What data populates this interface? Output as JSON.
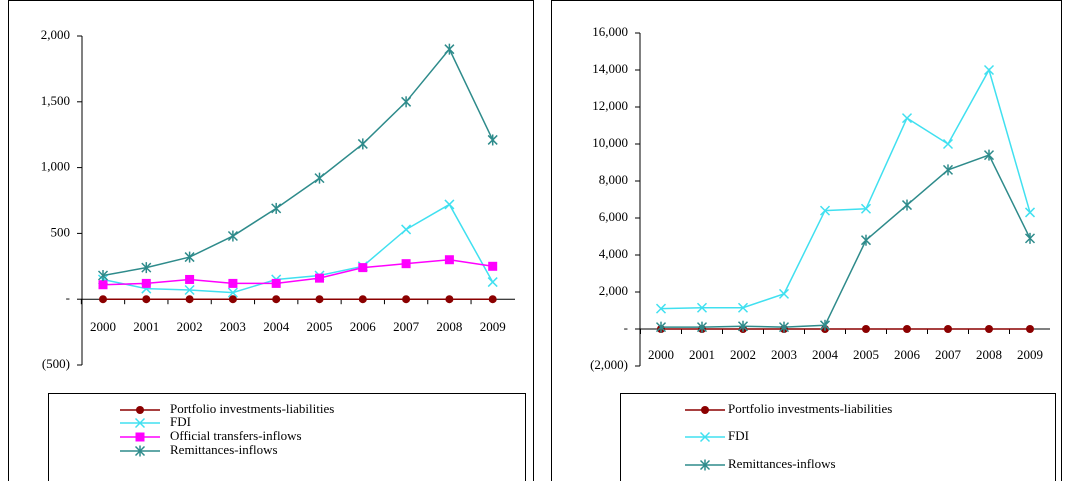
{
  "chart_data": [
    {
      "type": "line",
      "categories": [
        "2000",
        "2001",
        "2002",
        "2003",
        "2004",
        "2005",
        "2006",
        "2007",
        "2008",
        "2009"
      ],
      "ylim": [
        -500,
        2000
      ],
      "yticks": [
        {
          "value": -500,
          "label": "(500)"
        },
        {
          "value": 0,
          "label": "-"
        },
        500,
        {
          "value": 1000,
          "label": "1,000"
        },
        {
          "value": 1500,
          "label": "1,500"
        },
        {
          "value": 2000,
          "label": "2,000"
        }
      ],
      "grid": false,
      "series": [
        {
          "name": "Portfolio investments-liabilities",
          "color": "#8b0000",
          "marker": "circle",
          "values": [
            0,
            0,
            0,
            0,
            0,
            0,
            0,
            0,
            0,
            0
          ]
        },
        {
          "name": "FDI",
          "color": "#40e0f0",
          "marker": "x",
          "values": [
            150,
            80,
            70,
            50,
            150,
            180,
            250,
            530,
            720,
            130
          ]
        },
        {
          "name": "Official transfers-inflows",
          "color": "#ff00ff",
          "marker": "square",
          "values": [
            110,
            120,
            150,
            120,
            120,
            160,
            240,
            270,
            300,
            250
          ]
        },
        {
          "name": "Remittances-inflows",
          "color": "#2e8b8b",
          "marker": "star",
          "values": [
            180,
            240,
            320,
            480,
            690,
            920,
            1180,
            1500,
            1900,
            1210
          ]
        }
      ]
    },
    {
      "type": "line",
      "categories": [
        "2000",
        "2001",
        "2002",
        "2003",
        "2004",
        "2005",
        "2006",
        "2007",
        "2008",
        "2009"
      ],
      "ylim": [
        -2000,
        16000
      ],
      "yticks": [
        {
          "value": -2000,
          "label": "(2,000)"
        },
        {
          "value": 0,
          "label": "-"
        },
        {
          "value": 2000,
          "label": "2,000"
        },
        {
          "value": 4000,
          "label": "4,000"
        },
        {
          "value": 6000,
          "label": "6,000"
        },
        {
          "value": 8000,
          "label": "8,000"
        },
        {
          "value": 10000,
          "label": "10,000"
        },
        {
          "value": 12000,
          "label": "12,000"
        },
        {
          "value": 14000,
          "label": "14,000"
        },
        {
          "value": 16000,
          "label": "16,000"
        }
      ],
      "grid": false,
      "series": [
        {
          "name": "Portfolio investments-liabilities",
          "color": "#8b0000",
          "marker": "circle",
          "values": [
            0,
            0,
            0,
            0,
            0,
            0,
            0,
            0,
            0,
            0
          ]
        },
        {
          "name": "FDI",
          "color": "#40e0f0",
          "marker": "x",
          "values": [
            1100,
            1150,
            1150,
            1900,
            6400,
            6500,
            11400,
            10000,
            14000,
            6300
          ]
        },
        {
          "name": "Remittances-inflows",
          "color": "#2e8b8b",
          "marker": "star",
          "values": [
            100,
            100,
            150,
            100,
            200,
            4800,
            6700,
            8600,
            9400,
            4900
          ]
        }
      ]
    }
  ]
}
